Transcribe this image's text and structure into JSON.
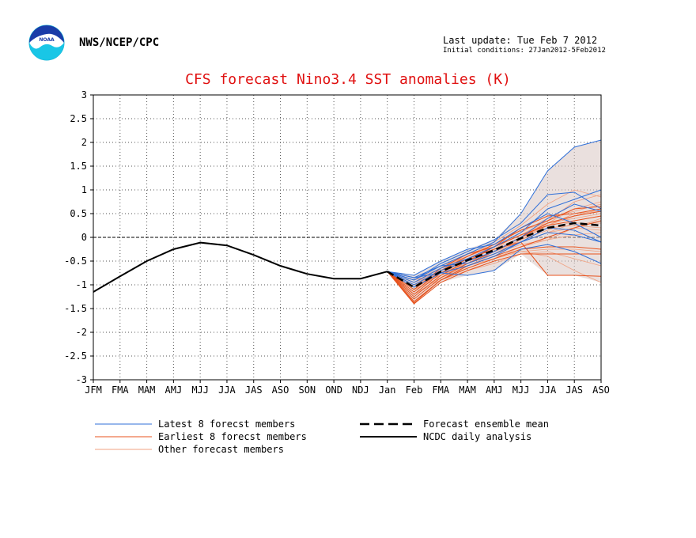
{
  "header": {
    "org": "NWS/NCEP/CPC",
    "last_update": "Last update: Tue Feb 7 2012",
    "initial_conditions": "Initial conditions: 27Jan2012-5Feb2012",
    "logo_text": "NOAA"
  },
  "colors": {
    "title": "#e01010",
    "latest": "#2f6fd8",
    "earliest": "#e8531e",
    "other": "#f0a080",
    "mean": "#000000",
    "analysis": "#000000",
    "spread_fill": "#d9c6c2"
  },
  "chart_data": {
    "type": "line",
    "title": "CFS forecast Nino3.4 SST anomalies (K)",
    "xlabel": "",
    "ylabel": "",
    "categories": [
      "JFM",
      "FMA",
      "MAM",
      "AMJ",
      "MJJ",
      "JJA",
      "JAS",
      "ASO",
      "SON",
      "OND",
      "NDJ",
      "Jan",
      "Feb",
      "FMA",
      "MAM",
      "AMJ",
      "MJJ",
      "JJA",
      "JAS",
      "ASO"
    ],
    "ylim": [
      -3,
      3
    ],
    "yticks": [
      "3",
      "2.5",
      "2",
      "1.5",
      "1",
      "0.5",
      "0",
      "-0.5",
      "-1",
      "-1.5",
      "-2",
      "-2.5",
      "-3"
    ],
    "grid": true,
    "legend_placement": "bottom",
    "legend": [
      {
        "label": "Latest 8 forecst members",
        "style": "latest"
      },
      {
        "label": "Earliest 8 forecst members",
        "style": "earliest"
      },
      {
        "label": "Other forecast members",
        "style": "other"
      },
      {
        "label": "Forecast ensemble mean",
        "style": "mean"
      },
      {
        "label": "NCDC daily analysis",
        "style": "analysis"
      }
    ],
    "analysis": [
      -1.15,
      -0.82,
      -0.5,
      -0.25,
      -0.11,
      -0.17,
      -0.37,
      -0.6,
      -0.77,
      -0.87,
      -0.87,
      -0.72
    ],
    "mean": {
      "start_index": 11,
      "values": [
        -0.72,
        -1.05,
        -0.72,
        -0.48,
        -0.27,
        -0.02,
        0.2,
        0.3,
        0.25
      ]
    },
    "forecast_members": {
      "start_index": 11,
      "latest": [
        [
          -0.72,
          -0.85,
          -0.6,
          -0.35,
          -0.1,
          0.5,
          1.4,
          1.9,
          2.05
        ],
        [
          -0.72,
          -0.9,
          -0.55,
          -0.3,
          -0.05,
          0.3,
          0.9,
          0.95,
          0.6
        ],
        [
          -0.72,
          -0.95,
          -0.65,
          -0.45,
          -0.2,
          0.1,
          0.6,
          0.8,
          1.0
        ],
        [
          -0.72,
          -1.0,
          -0.7,
          -0.5,
          -0.3,
          0.0,
          0.4,
          0.7,
          0.55
        ],
        [
          -0.72,
          -0.8,
          -0.5,
          -0.25,
          -0.15,
          0.2,
          0.5,
          0.3,
          0.0
        ],
        [
          -0.72,
          -1.05,
          -0.75,
          -0.6,
          -0.4,
          -0.1,
          0.1,
          0.05,
          -0.1
        ],
        [
          -0.72,
          -0.85,
          -0.75,
          -0.8,
          -0.7,
          -0.25,
          -0.15,
          -0.3,
          -0.55
        ],
        [
          -0.72,
          -0.9,
          -0.6,
          -0.55,
          -0.35,
          -0.1,
          0.2,
          0.15,
          -0.1
        ]
      ],
      "earliest": [
        [
          -0.72,
          -1.4,
          -0.95,
          -0.7,
          -0.5,
          -0.35,
          -0.35,
          -0.35,
          -0.35
        ],
        [
          -0.72,
          -1.35,
          -0.9,
          -0.6,
          -0.4,
          -0.2,
          0.0,
          0.2,
          0.35
        ],
        [
          -0.72,
          -1.3,
          -0.85,
          -0.55,
          -0.3,
          0.0,
          0.3,
          0.45,
          0.55
        ],
        [
          -0.72,
          -1.25,
          -0.8,
          -0.5,
          -0.2,
          0.05,
          0.25,
          0.35,
          0.45
        ],
        [
          -0.72,
          -1.2,
          -0.75,
          -0.45,
          -0.25,
          -0.1,
          -0.8,
          -0.8,
          -0.82
        ],
        [
          -0.72,
          -1.15,
          -0.7,
          -0.4,
          -0.15,
          0.15,
          0.35,
          0.6,
          0.65
        ],
        [
          -0.72,
          -1.1,
          -0.65,
          -0.35,
          -0.2,
          0.2,
          0.45,
          0.5,
          0.6
        ],
        [
          -0.72,
          -1.38,
          -0.9,
          -0.65,
          -0.45,
          -0.25,
          -0.2,
          -0.2,
          -0.25
        ]
      ],
      "other": [
        [
          -0.72,
          -0.95,
          -0.75,
          -0.55,
          -0.35,
          -0.1,
          0.1,
          0.3,
          0.3
        ],
        [
          -0.72,
          -1.0,
          -0.7,
          -0.45,
          -0.25,
          0.0,
          0.25,
          0.5,
          0.55
        ],
        [
          -0.72,
          -1.05,
          -0.8,
          -0.6,
          -0.4,
          -0.3,
          -0.4,
          -0.7,
          -0.95
        ],
        [
          -0.72,
          -1.1,
          -0.85,
          -0.65,
          -0.45,
          -0.2,
          -0.05,
          0.2,
          0.4
        ],
        [
          -0.72,
          -0.9,
          -0.65,
          -0.4,
          -0.2,
          0.05,
          0.35,
          0.75,
          0.9
        ],
        [
          -0.72,
          -0.85,
          -0.6,
          -0.4,
          -0.1,
          0.25,
          0.7,
          1.0,
          0.85
        ],
        [
          -0.72,
          -1.15,
          -0.75,
          -0.5,
          -0.3,
          -0.1,
          0.1,
          0.2,
          0.15
        ],
        [
          -0.72,
          -1.2,
          -0.9,
          -0.7,
          -0.55,
          -0.35,
          -0.3,
          -0.45,
          -0.6
        ],
        [
          -0.72,
          -1.0,
          -0.75,
          -0.55,
          -0.3,
          -0.05,
          0.15,
          0.35,
          0.45
        ],
        [
          -0.72,
          -0.95,
          -0.7,
          -0.45,
          -0.25,
          0.1,
          0.4,
          0.55,
          0.7
        ],
        [
          -0.72,
          -1.05,
          -0.8,
          -0.5,
          -0.35,
          -0.15,
          -0.05,
          0.05,
          0.1
        ],
        [
          -0.72,
          -1.1,
          -0.7,
          -0.4,
          -0.15,
          0.15,
          0.3,
          0.4,
          0.5
        ],
        [
          -0.72,
          -0.9,
          -0.75,
          -0.6,
          -0.45,
          -0.3,
          -0.25,
          -0.25,
          -0.3
        ],
        [
          -0.72,
          -1.0,
          -0.8,
          -0.55,
          -0.3,
          0.0,
          0.2,
          0.25,
          0.2
        ],
        [
          -0.72,
          -1.2,
          -0.85,
          -0.6,
          -0.35,
          -0.05,
          0.25,
          0.45,
          0.6
        ],
        [
          -0.72,
          -0.95,
          -0.65,
          -0.4,
          -0.2,
          0.05,
          0.3,
          0.6,
          0.75
        ]
      ]
    }
  }
}
